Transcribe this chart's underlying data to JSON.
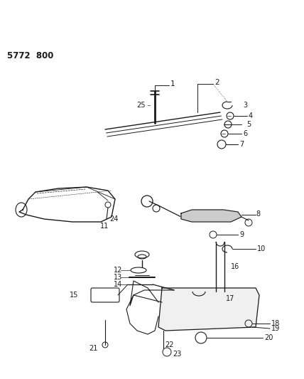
{
  "bg_color": "#ffffff",
  "line_color": "#1a1a1a",
  "diagram_id": "5772  800",
  "figsize": [
    4.28,
    5.33
  ],
  "dpi": 100
}
